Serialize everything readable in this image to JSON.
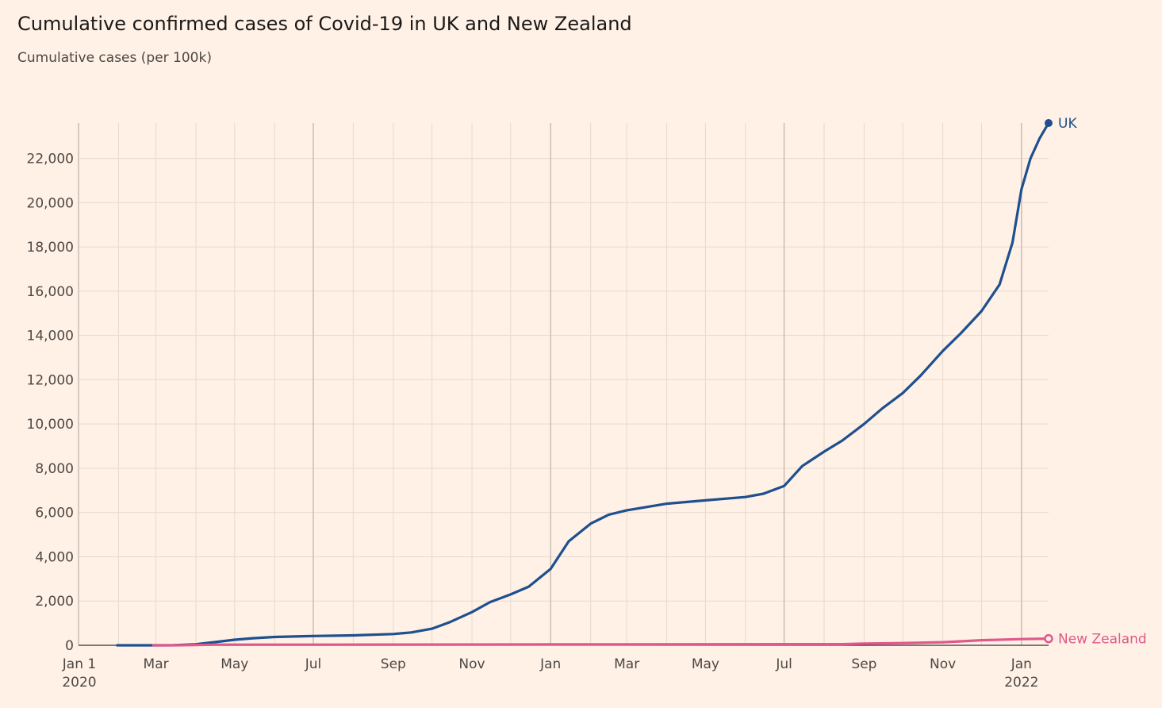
{
  "chart_data": {
    "type": "line",
    "title": "Cumulative confirmed cases of Covid-19 in UK and New Zealand",
    "subtitle": "Cumulative cases (per 100k)",
    "xlabel": "",
    "ylabel": "",
    "xlim": [
      "2020-01-01",
      "2022-01-22"
    ],
    "ylim": [
      0,
      23600
    ],
    "y_ticks": [
      0,
      2000,
      4000,
      6000,
      8000,
      10000,
      12000,
      14000,
      16000,
      18000,
      20000,
      22000
    ],
    "y_tick_labels": [
      "0",
      "2,000",
      "4,000",
      "6,000",
      "8,000",
      "10,000",
      "12,000",
      "14,000",
      "16,000",
      "18,000",
      "20,000",
      "22,000"
    ],
    "x_ticks": [
      {
        "date": "2020-01-01",
        "label": "Jan 1",
        "sublabel": "2020",
        "major": true
      },
      {
        "date": "2020-03-01",
        "label": "Mar",
        "sublabel": "",
        "major": false
      },
      {
        "date": "2020-05-01",
        "label": "May",
        "sublabel": "",
        "major": false
      },
      {
        "date": "2020-07-01",
        "label": "Jul",
        "sublabel": "",
        "major": true
      },
      {
        "date": "2020-09-01",
        "label": "Sep",
        "sublabel": "",
        "major": false
      },
      {
        "date": "2020-11-01",
        "label": "Nov",
        "sublabel": "",
        "major": false
      },
      {
        "date": "2021-01-01",
        "label": "Jan",
        "sublabel": "",
        "major": true
      },
      {
        "date": "2021-03-01",
        "label": "Mar",
        "sublabel": "",
        "major": false
      },
      {
        "date": "2021-05-01",
        "label": "May",
        "sublabel": "",
        "major": false
      },
      {
        "date": "2021-07-01",
        "label": "Jul",
        "sublabel": "",
        "major": true
      },
      {
        "date": "2021-09-01",
        "label": "Sep",
        "sublabel": "",
        "major": false
      },
      {
        "date": "2021-11-01",
        "label": "Nov",
        "sublabel": "",
        "major": false
      },
      {
        "date": "2022-01-01",
        "label": "Jan",
        "sublabel": "2022",
        "major": true
      }
    ],
    "minor_gridline_dates": [
      "2020-02-01",
      "2020-04-01",
      "2020-06-01",
      "2020-08-01",
      "2020-10-01",
      "2020-12-01",
      "2021-02-01",
      "2021-04-01",
      "2021-06-01",
      "2021-08-01",
      "2021-10-01",
      "2021-12-01"
    ],
    "grid": true,
    "legend": "direct labels at line ends",
    "series": [
      {
        "name": "UK",
        "color": "#1e4f8f",
        "points": [
          [
            "2020-01-31",
            0
          ],
          [
            "2020-03-01",
            0
          ],
          [
            "2020-03-15",
            2
          ],
          [
            "2020-04-01",
            45
          ],
          [
            "2020-04-15",
            140
          ],
          [
            "2020-05-01",
            250
          ],
          [
            "2020-05-15",
            320
          ],
          [
            "2020-06-01",
            375
          ],
          [
            "2020-07-01",
            420
          ],
          [
            "2020-08-01",
            450
          ],
          [
            "2020-09-01",
            510
          ],
          [
            "2020-09-15",
            580
          ],
          [
            "2020-10-01",
            750
          ],
          [
            "2020-10-15",
            1050
          ],
          [
            "2020-11-01",
            1500
          ],
          [
            "2020-11-15",
            1950
          ],
          [
            "2020-12-01",
            2300
          ],
          [
            "2020-12-15",
            2650
          ],
          [
            "2021-01-01",
            3450
          ],
          [
            "2021-01-15",
            4700
          ],
          [
            "2021-02-01",
            5500
          ],
          [
            "2021-02-15",
            5900
          ],
          [
            "2021-03-01",
            6100
          ],
          [
            "2021-04-01",
            6400
          ],
          [
            "2021-05-01",
            6550
          ],
          [
            "2021-06-01",
            6700
          ],
          [
            "2021-06-15",
            6850
          ],
          [
            "2021-07-01",
            7200
          ],
          [
            "2021-07-15",
            8100
          ],
          [
            "2021-08-01",
            8750
          ],
          [
            "2021-08-15",
            9250
          ],
          [
            "2021-09-01",
            10000
          ],
          [
            "2021-09-15",
            10700
          ],
          [
            "2021-10-01",
            11400
          ],
          [
            "2021-10-15",
            12200
          ],
          [
            "2021-11-01",
            13300
          ],
          [
            "2021-11-15",
            14100
          ],
          [
            "2021-12-01",
            15100
          ],
          [
            "2021-12-15",
            16300
          ],
          [
            "2021-12-25",
            18200
          ],
          [
            "2022-01-01",
            20600
          ],
          [
            "2022-01-08",
            22000
          ],
          [
            "2022-01-15",
            22900
          ],
          [
            "2022-01-22",
            23600
          ]
        ]
      },
      {
        "name": "New Zealand",
        "color": "#e0588c",
        "points": [
          [
            "2020-02-28",
            0
          ],
          [
            "2020-03-15",
            0
          ],
          [
            "2020-04-01",
            15
          ],
          [
            "2020-04-15",
            28
          ],
          [
            "2020-06-01",
            30
          ],
          [
            "2021-01-01",
            40
          ],
          [
            "2021-08-15",
            50
          ],
          [
            "2021-09-01",
            75
          ],
          [
            "2021-10-01",
            100
          ],
          [
            "2021-11-01",
            140
          ],
          [
            "2021-11-15",
            180
          ],
          [
            "2021-12-01",
            230
          ],
          [
            "2022-01-01",
            280
          ],
          [
            "2022-01-22",
            300
          ]
        ]
      }
    ],
    "baseline_color": "#33302e",
    "grid_color": "#e6d9ce",
    "major_grid_color": "#ccc1b7"
  }
}
